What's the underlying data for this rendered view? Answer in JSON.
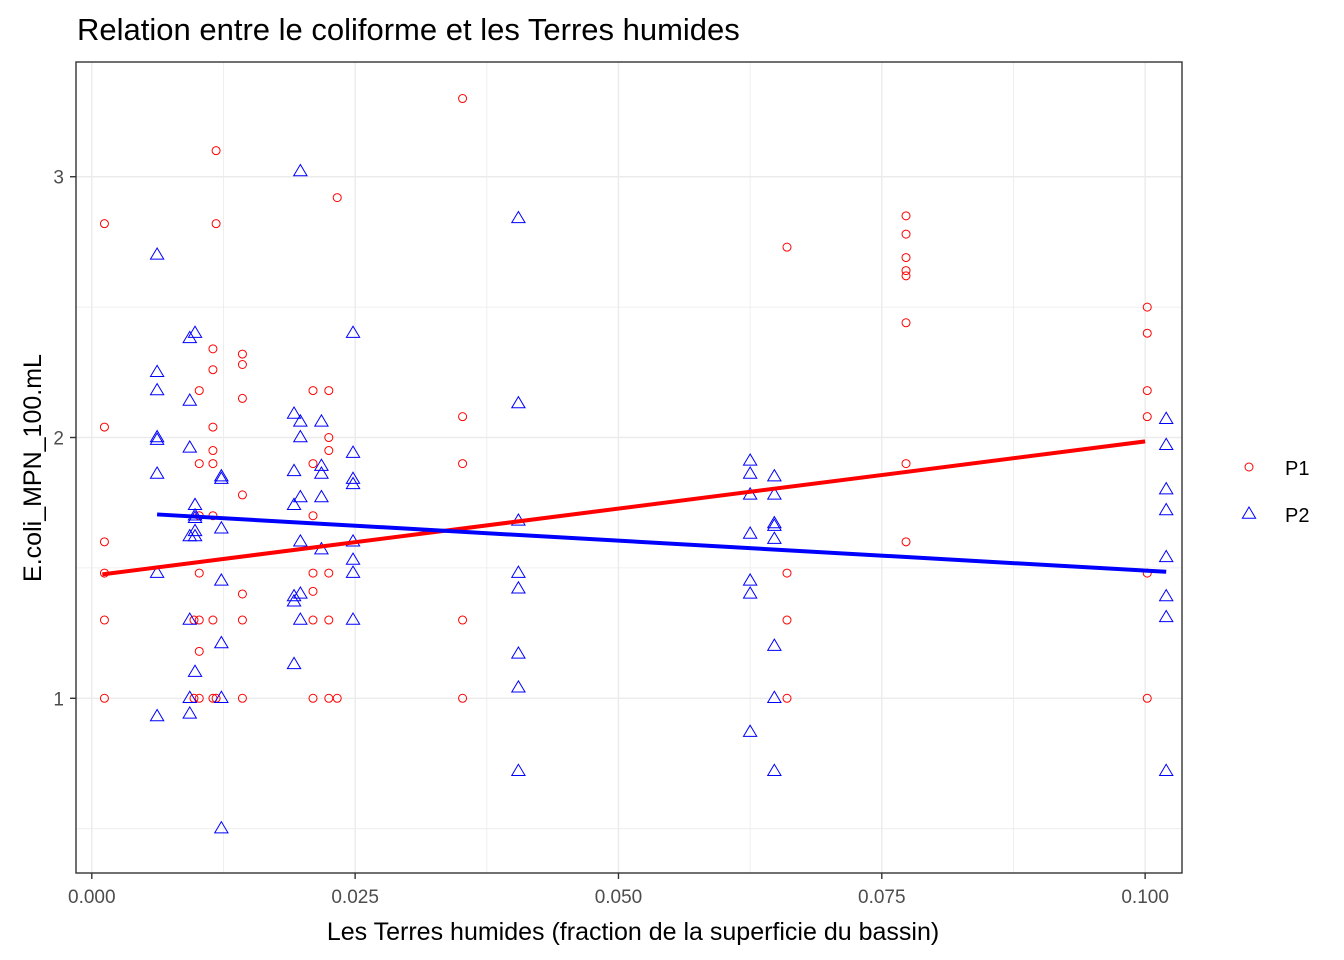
{
  "chart_data": {
    "type": "scatter",
    "title": "Relation entre le coliforme et les Terres humides",
    "xlabel": "Les Terres humides (fraction de la superficie du bassin)",
    "ylabel": "E.coli_MPN_100.mL",
    "xlim": [
      -0.0015,
      0.1035
    ],
    "ylim": [
      0.33,
      3.44
    ],
    "x_ticks": [
      0.0,
      0.025,
      0.05,
      0.075,
      0.1
    ],
    "x_tick_labels": [
      "0.000",
      "0.025",
      "0.050",
      "0.075",
      "0.100"
    ],
    "y_ticks": [
      1,
      2,
      3
    ],
    "y_tick_labels": [
      "1",
      "2",
      "3"
    ],
    "grid": true,
    "legend_position": "right",
    "series": [
      {
        "name": "P1",
        "marker": "circle",
        "color": "#FF0000",
        "points": [
          [
            0.0012,
            2.82
          ],
          [
            0.0012,
            2.04
          ],
          [
            0.0012,
            1.6
          ],
          [
            0.0012,
            1.48
          ],
          [
            0.0012,
            1.3
          ],
          [
            0.0012,
            1.0
          ],
          [
            0.0097,
            1.3
          ],
          [
            0.0097,
            1.0
          ],
          [
            0.0102,
            2.18
          ],
          [
            0.0102,
            1.9
          ],
          [
            0.0102,
            1.7
          ],
          [
            0.0102,
            1.48
          ],
          [
            0.0102,
            1.3
          ],
          [
            0.0102,
            1.18
          ],
          [
            0.0102,
            1.0
          ],
          [
            0.0115,
            2.34
          ],
          [
            0.0115,
            2.26
          ],
          [
            0.0115,
            2.04
          ],
          [
            0.0115,
            1.95
          ],
          [
            0.0115,
            1.9
          ],
          [
            0.0115,
            1.7
          ],
          [
            0.0115,
            1.3
          ],
          [
            0.0115,
            1.0
          ],
          [
            0.0118,
            3.1
          ],
          [
            0.0118,
            2.82
          ],
          [
            0.0118,
            1.0
          ],
          [
            0.0143,
            2.32
          ],
          [
            0.0143,
            2.28
          ],
          [
            0.0143,
            2.15
          ],
          [
            0.0143,
            1.78
          ],
          [
            0.0143,
            1.4
          ],
          [
            0.0143,
            1.3
          ],
          [
            0.0143,
            1.0
          ],
          [
            0.021,
            2.18
          ],
          [
            0.021,
            1.9
          ],
          [
            0.021,
            1.7
          ],
          [
            0.021,
            1.48
          ],
          [
            0.021,
            1.41
          ],
          [
            0.021,
            1.3
          ],
          [
            0.021,
            1.0
          ],
          [
            0.0225,
            2.18
          ],
          [
            0.0225,
            2.0
          ],
          [
            0.0225,
            1.95
          ],
          [
            0.0225,
            1.48
          ],
          [
            0.0225,
            1.3
          ],
          [
            0.0225,
            1.0
          ],
          [
            0.0233,
            2.92
          ],
          [
            0.0233,
            1.0
          ],
          [
            0.0352,
            3.3
          ],
          [
            0.0352,
            2.08
          ],
          [
            0.0352,
            1.9
          ],
          [
            0.0352,
            1.3
          ],
          [
            0.0352,
            1.0
          ],
          [
            0.066,
            2.73
          ],
          [
            0.066,
            1.48
          ],
          [
            0.066,
            1.3
          ],
          [
            0.066,
            1.0
          ],
          [
            0.0773,
            2.85
          ],
          [
            0.0773,
            2.78
          ],
          [
            0.0773,
            2.69
          ],
          [
            0.0773,
            2.64
          ],
          [
            0.0773,
            2.62
          ],
          [
            0.0773,
            2.44
          ],
          [
            0.0773,
            1.9
          ],
          [
            0.0773,
            1.6
          ],
          [
            0.1002,
            2.5
          ],
          [
            0.1002,
            2.4
          ],
          [
            0.1002,
            2.18
          ],
          [
            0.1002,
            2.08
          ],
          [
            0.1002,
            1.48
          ],
          [
            0.1002,
            1.0
          ]
        ],
        "fit_line": [
          [
            0.001,
            1.475
          ],
          [
            0.1,
            1.985
          ]
        ]
      },
      {
        "name": "P2",
        "marker": "triangle",
        "color": "#0000FF",
        "points": [
          [
            0.0062,
            2.7
          ],
          [
            0.0062,
            2.25
          ],
          [
            0.0062,
            2.18
          ],
          [
            0.0062,
            2.0
          ],
          [
            0.0062,
            1.99
          ],
          [
            0.0062,
            1.86
          ],
          [
            0.0062,
            1.48
          ],
          [
            0.0062,
            0.93
          ],
          [
            0.0093,
            2.38
          ],
          [
            0.0093,
            2.14
          ],
          [
            0.0093,
            1.96
          ],
          [
            0.0093,
            1.62
          ],
          [
            0.0093,
            1.3
          ],
          [
            0.0093,
            1.0
          ],
          [
            0.0093,
            0.94
          ],
          [
            0.0098,
            2.4
          ],
          [
            0.0098,
            1.74
          ],
          [
            0.0098,
            1.7
          ],
          [
            0.0098,
            1.69
          ],
          [
            0.0098,
            1.64
          ],
          [
            0.0098,
            1.62
          ],
          [
            0.0098,
            1.1
          ],
          [
            0.0123,
            1.85
          ],
          [
            0.0123,
            1.84
          ],
          [
            0.0123,
            1.65
          ],
          [
            0.0123,
            1.45
          ],
          [
            0.0123,
            1.21
          ],
          [
            0.0123,
            1.0
          ],
          [
            0.0123,
            0.5
          ],
          [
            0.0192,
            2.09
          ],
          [
            0.0192,
            1.87
          ],
          [
            0.0192,
            1.74
          ],
          [
            0.0192,
            1.39
          ],
          [
            0.0192,
            1.37
          ],
          [
            0.0192,
            1.13
          ],
          [
            0.0198,
            3.02
          ],
          [
            0.0198,
            2.06
          ],
          [
            0.0198,
            2.0
          ],
          [
            0.0198,
            1.77
          ],
          [
            0.0198,
            1.6
          ],
          [
            0.0198,
            1.4
          ],
          [
            0.0198,
            1.3
          ],
          [
            0.0218,
            2.06
          ],
          [
            0.0218,
            1.89
          ],
          [
            0.0218,
            1.86
          ],
          [
            0.0218,
            1.77
          ],
          [
            0.0218,
            1.57
          ],
          [
            0.0248,
            2.4
          ],
          [
            0.0248,
            1.94
          ],
          [
            0.0248,
            1.84
          ],
          [
            0.0248,
            1.82
          ],
          [
            0.0248,
            1.6
          ],
          [
            0.0248,
            1.53
          ],
          [
            0.0248,
            1.48
          ],
          [
            0.0248,
            1.3
          ],
          [
            0.0405,
            2.84
          ],
          [
            0.0405,
            2.13
          ],
          [
            0.0405,
            1.68
          ],
          [
            0.0405,
            1.48
          ],
          [
            0.0405,
            1.42
          ],
          [
            0.0405,
            1.17
          ],
          [
            0.0405,
            1.04
          ],
          [
            0.0405,
            0.72
          ],
          [
            0.0625,
            1.91
          ],
          [
            0.0625,
            1.86
          ],
          [
            0.0625,
            1.78
          ],
          [
            0.0625,
            1.63
          ],
          [
            0.0625,
            1.45
          ],
          [
            0.0625,
            1.4
          ],
          [
            0.0625,
            0.87
          ],
          [
            0.0648,
            1.85
          ],
          [
            0.0648,
            1.78
          ],
          [
            0.0648,
            1.67
          ],
          [
            0.0648,
            1.66
          ],
          [
            0.0648,
            1.61
          ],
          [
            0.0648,
            1.2
          ],
          [
            0.0648,
            1.0
          ],
          [
            0.0648,
            0.72
          ],
          [
            0.102,
            2.07
          ],
          [
            0.102,
            1.97
          ],
          [
            0.102,
            1.8
          ],
          [
            0.102,
            1.72
          ],
          [
            0.102,
            1.54
          ],
          [
            0.102,
            1.39
          ],
          [
            0.102,
            1.31
          ],
          [
            0.102,
            0.72
          ]
        ],
        "fit_line": [
          [
            0.0062,
            1.705
          ],
          [
            0.102,
            1.485
          ]
        ]
      }
    ]
  }
}
